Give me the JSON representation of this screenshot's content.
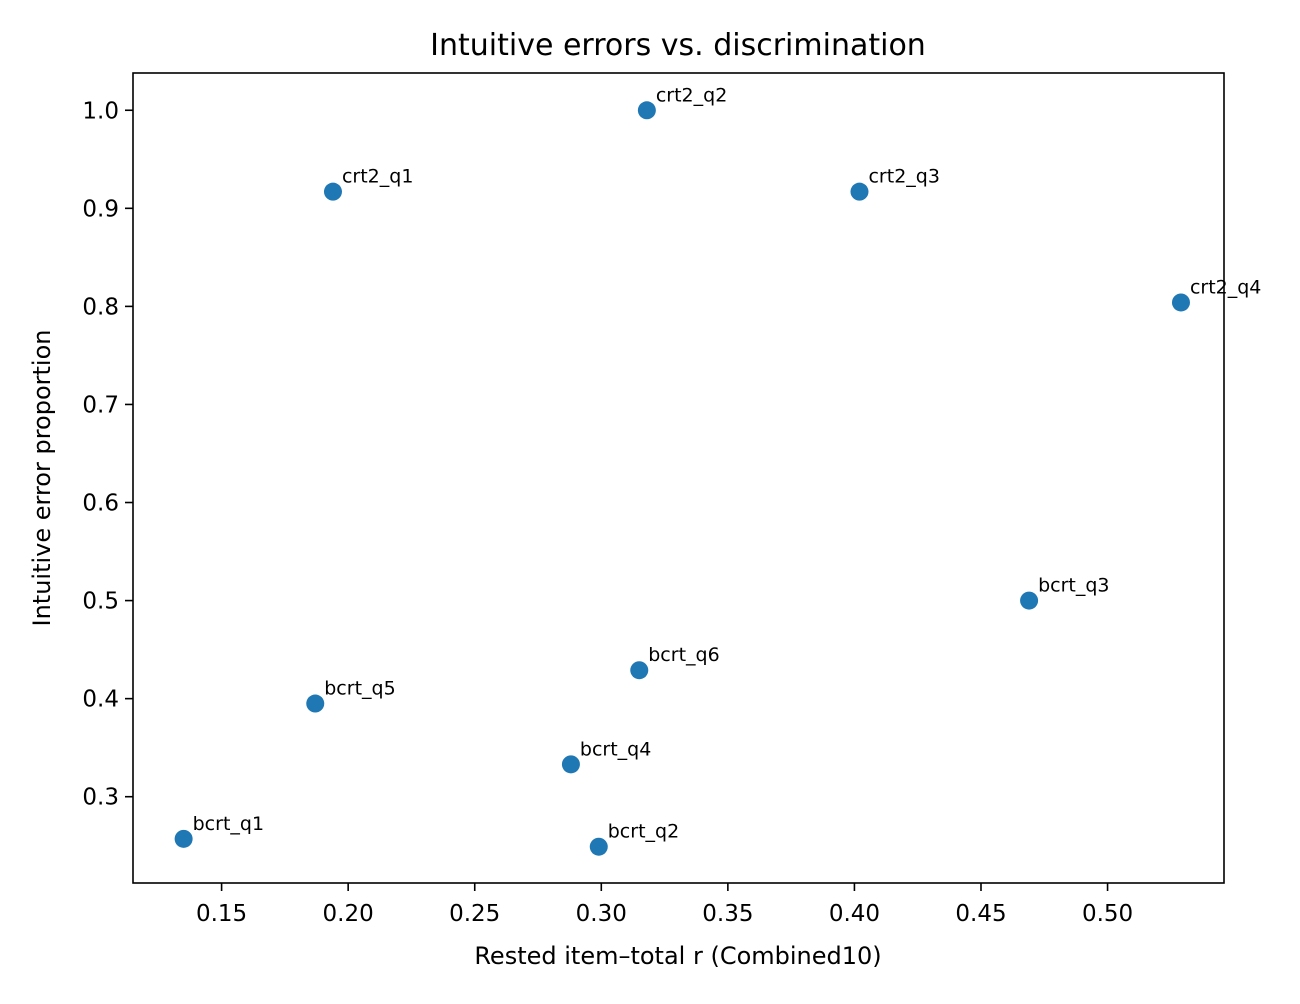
{
  "chart_data": {
    "type": "scatter",
    "title": "Intuitive errors vs. discrimination",
    "xlabel": "Rested item–total r (Combined10)",
    "ylabel": "Intuitive error proportion",
    "xlim": [
      0.115,
      0.546
    ],
    "ylim": [
      0.212,
      1.038
    ],
    "xticks": [
      0.15,
      0.2,
      0.25,
      0.3,
      0.35,
      0.4,
      0.45,
      0.5
    ],
    "xtick_labels": [
      "0.15",
      "0.20",
      "0.25",
      "0.30",
      "0.35",
      "0.40",
      "0.45",
      "0.50"
    ],
    "yticks": [
      0.3,
      0.4,
      0.5,
      0.6,
      0.7,
      0.8,
      0.9,
      1.0
    ],
    "ytick_labels": [
      "0.3",
      "0.4",
      "0.5",
      "0.6",
      "0.7",
      "0.8",
      "0.9",
      "1.0"
    ],
    "grid": false,
    "marker_color": "#1f77b4",
    "points": [
      {
        "label": "crt2_q1",
        "x": 0.194,
        "y": 0.917
      },
      {
        "label": "crt2_q2",
        "x": 0.318,
        "y": 1.0
      },
      {
        "label": "crt2_q3",
        "x": 0.402,
        "y": 0.917
      },
      {
        "label": "crt2_q4",
        "x": 0.529,
        "y": 0.804
      },
      {
        "label": "bcrt_q1",
        "x": 0.135,
        "y": 0.257
      },
      {
        "label": "bcrt_q2",
        "x": 0.299,
        "y": 0.249
      },
      {
        "label": "bcrt_q3",
        "x": 0.469,
        "y": 0.5
      },
      {
        "label": "bcrt_q4",
        "x": 0.288,
        "y": 0.333
      },
      {
        "label": "bcrt_q5",
        "x": 0.187,
        "y": 0.395
      },
      {
        "label": "bcrt_q6",
        "x": 0.315,
        "y": 0.429
      }
    ]
  }
}
